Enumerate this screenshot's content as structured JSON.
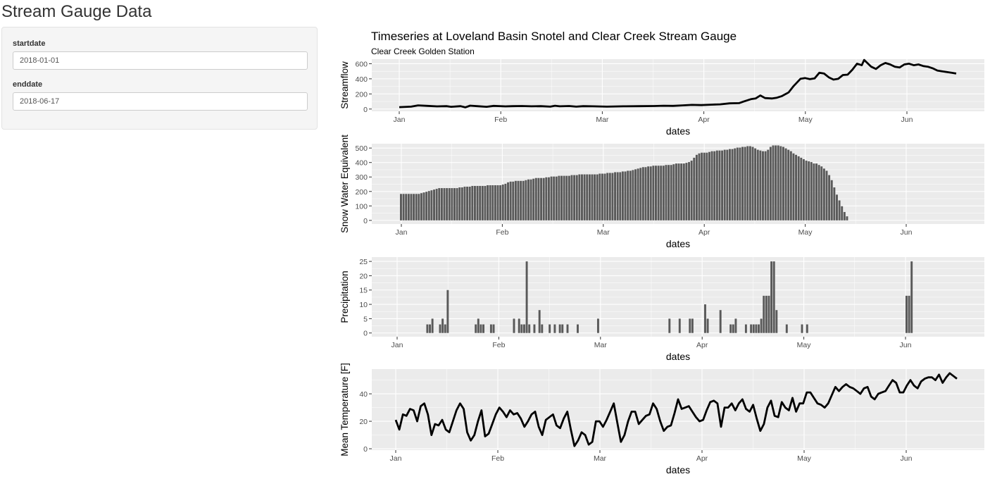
{
  "page": {
    "title": "Stream Gauge Data"
  },
  "sidebar": {
    "start": {
      "label": "startdate",
      "value": "2018-01-01"
    },
    "end": {
      "label": "enddate",
      "value": "2018-06-17"
    }
  },
  "colors": {
    "panel_bg": "#ebebeb",
    "grid_major": "#ffffff",
    "bar_fill": "#595959",
    "line": "#000000",
    "sidebar_bg": "#f5f5f5"
  },
  "chart_data": [
    {
      "id": "streamflow",
      "type": "line",
      "title": "Timeseries at Loveland Basin Snotel and Clear Creek Stream Gauge",
      "subtitle": "Clear Creek Golden Station",
      "xlabel": "dates",
      "ylabel": "Streamflow",
      "x_ticks": [
        "Jan",
        "Feb",
        "Mar",
        "Apr",
        "May",
        "Jun"
      ],
      "y_ticks": [
        0,
        200,
        400,
        600
      ],
      "ylim": [
        -30,
        660
      ],
      "x_start": 0,
      "x_end": 167,
      "grid": true,
      "points": [
        [
          0,
          25
        ],
        [
          5,
          32
        ],
        [
          8,
          48
        ],
        [
          12,
          42
        ],
        [
          16,
          35
        ],
        [
          20,
          38
        ],
        [
          22,
          30
        ],
        [
          26,
          38
        ],
        [
          28,
          22
        ],
        [
          30,
          45
        ],
        [
          33,
          38
        ],
        [
          37,
          30
        ],
        [
          40,
          42
        ],
        [
          45,
          35
        ],
        [
          48,
          38
        ],
        [
          52,
          40
        ],
        [
          56,
          36
        ],
        [
          60,
          38
        ],
        [
          64,
          32
        ],
        [
          66,
          44
        ],
        [
          68,
          36
        ],
        [
          72,
          40
        ],
        [
          75,
          32
        ],
        [
          78,
          38
        ],
        [
          82,
          36
        ],
        [
          88,
          32
        ],
        [
          95,
          36
        ],
        [
          102,
          38
        ],
        [
          108,
          40
        ],
        [
          112,
          44
        ],
        [
          116,
          42
        ],
        [
          120,
          48
        ],
        [
          124,
          55
        ],
        [
          128,
          52
        ],
        [
          132,
          58
        ],
        [
          136,
          62
        ],
        [
          140,
          75
        ],
        [
          144,
          78
        ],
        [
          146,
          100
        ],
        [
          149,
          130
        ],
        [
          151,
          140
        ],
        [
          153,
          180
        ],
        [
          155,
          145
        ],
        [
          158,
          140
        ],
        [
          160,
          150
        ],
        [
          162,
          170
        ],
        [
          165,
          220
        ],
        [
          167,
          300
        ],
        [
          170,
          400
        ],
        [
          172,
          410
        ],
        [
          174,
          395
        ],
        [
          176,
          405
        ],
        [
          178,
          480
        ],
        [
          180,
          470
        ],
        [
          182,
          420
        ],
        [
          184,
          390
        ],
        [
          186,
          400
        ],
        [
          188,
          450
        ],
        [
          190,
          455
        ],
        [
          192,
          520
        ],
        [
          194,
          600
        ],
        [
          196,
          580
        ],
        [
          197,
          650
        ],
        [
          200,
          560
        ],
        [
          202,
          530
        ],
        [
          204,
          580
        ],
        [
          206,
          610
        ],
        [
          208,
          590
        ],
        [
          210,
          560
        ],
        [
          212,
          550
        ],
        [
          214,
          590
        ],
        [
          216,
          600
        ],
        [
          218,
          580
        ],
        [
          220,
          590
        ],
        [
          222,
          570
        ],
        [
          224,
          560
        ],
        [
          226,
          540
        ],
        [
          228,
          510
        ],
        [
          230,
          500
        ],
        [
          232,
          490
        ],
        [
          234,
          480
        ],
        [
          236,
          470
        ]
      ]
    },
    {
      "id": "swe",
      "type": "bar",
      "xlabel": "dates",
      "ylabel": "Snow Water Equivalent",
      "x_ticks": [
        "Jan",
        "Feb",
        "Mar",
        "Apr",
        "May",
        "Jun"
      ],
      "y_ticks": [
        0,
        100,
        200,
        300,
        400,
        500
      ],
      "ylim": [
        -25,
        530
      ],
      "grid": true,
      "start_day": 0,
      "values": [
        183,
        183,
        183,
        183,
        183,
        183,
        183,
        183,
        188,
        193,
        198,
        203,
        208,
        213,
        218,
        223,
        223,
        223,
        223,
        223,
        223,
        223,
        223,
        228,
        228,
        233,
        233,
        233,
        238,
        238,
        238,
        238,
        238,
        238,
        243,
        243,
        243,
        243,
        243,
        243,
        248,
        253,
        263,
        268,
        268,
        273,
        273,
        273,
        273,
        278,
        283,
        283,
        288,
        293,
        293,
        293,
        293,
        298,
        298,
        303,
        303,
        303,
        308,
        308,
        308,
        308,
        308,
        313,
        313,
        313,
        318,
        318,
        318,
        318,
        318,
        318,
        318,
        318,
        323,
        323,
        323,
        328,
        328,
        328,
        333,
        333,
        333,
        338,
        338,
        343,
        343,
        348,
        353,
        358,
        363,
        368,
        368,
        373,
        373,
        378,
        378,
        378,
        378,
        378,
        383,
        383,
        383,
        388,
        393,
        393,
        393,
        393,
        398,
        403,
        413,
        433,
        453,
        463,
        468,
        468,
        468,
        473,
        478,
        478,
        483,
        483,
        483,
        488,
        488,
        493,
        493,
        498,
        503,
        503,
        508,
        508,
        513,
        513,
        508,
        498,
        488,
        483,
        478,
        478,
        488,
        508,
        518,
        518,
        518,
        513,
        508,
        498,
        488,
        478,
        463,
        453,
        443,
        433,
        423,
        413,
        408,
        403,
        393,
        393,
        383,
        373,
        358,
        343,
        313,
        278,
        228,
        178,
        138,
        98,
        58,
        28
      ]
    },
    {
      "id": "precip",
      "type": "bar",
      "xlabel": "dates",
      "ylabel": "Precipitation",
      "x_ticks": [
        "Jan",
        "Feb",
        "Mar",
        "Apr",
        "May",
        "Jun"
      ],
      "y_ticks": [
        0,
        5,
        10,
        15,
        20,
        25
      ],
      "ylim": [
        -1.3,
        26.5
      ],
      "grid": true,
      "start_day": 0,
      "values": [
        0,
        0,
        0,
        0,
        0,
        0,
        0,
        0,
        0,
        0,
        0,
        0,
        3,
        3,
        5,
        0,
        0,
        3,
        5,
        3,
        15,
        0,
        0,
        0,
        0,
        0,
        0,
        0,
        0,
        0,
        0,
        3,
        5,
        3,
        3,
        0,
        0,
        3,
        3,
        0,
        0,
        0,
        0,
        0,
        0,
        0,
        5,
        0,
        5,
        3,
        3,
        25,
        3,
        0,
        3,
        0,
        8,
        3,
        0,
        0,
        3,
        0,
        3,
        0,
        3,
        3,
        0,
        3,
        0,
        0,
        0,
        3,
        0,
        0,
        0,
        0,
        0,
        0,
        0,
        5,
        0,
        0,
        0,
        0,
        0,
        0,
        0,
        0,
        0,
        0,
        0,
        0,
        0,
        0,
        0,
        0,
        0,
        0,
        0,
        0,
        0,
        0,
        0,
        0,
        0,
        0,
        0,
        5,
        0,
        0,
        0,
        5,
        0,
        0,
        0,
        5,
        5,
        0,
        0,
        0,
        0,
        10,
        5,
        0,
        0,
        0,
        0,
        8,
        0,
        0,
        0,
        3,
        3,
        5,
        0,
        0,
        0,
        3,
        0,
        3,
        3,
        3,
        3,
        5,
        13,
        13,
        13,
        25,
        25,
        8,
        0,
        0,
        0,
        3,
        0,
        0,
        0,
        0,
        0,
        3,
        0,
        3,
        0,
        0,
        0,
        0,
        0,
        0,
        0,
        0,
        0,
        0,
        0,
        0,
        0,
        0,
        0,
        0,
        0,
        0,
        0,
        0,
        0,
        0,
        0,
        0,
        0,
        0,
        0,
        0,
        0,
        0,
        0,
        0,
        0,
        0,
        0,
        0,
        0,
        0,
        13,
        13,
        25
      ]
    },
    {
      "id": "temp",
      "type": "line",
      "xlabel": "dates",
      "ylabel": "Mean Temperature [F]",
      "x_ticks": [
        "Jan",
        "Feb",
        "Mar",
        "Apr",
        "May",
        "Jun"
      ],
      "y_ticks": [
        0,
        20,
        40
      ],
      "ylim": [
        -1,
        58
      ],
      "x_start": 0,
      "x_end": 167,
      "grid": true,
      "points": [
        [
          0,
          21
        ],
        [
          2,
          14
        ],
        [
          4,
          25
        ],
        [
          6,
          24
        ],
        [
          8,
          29
        ],
        [
          10,
          28
        ],
        [
          12,
          20
        ],
        [
          14,
          31
        ],
        [
          16,
          33
        ],
        [
          18,
          25
        ],
        [
          20,
          10
        ],
        [
          22,
          18
        ],
        [
          24,
          17
        ],
        [
          26,
          21
        ],
        [
          28,
          14
        ],
        [
          30,
          12
        ],
        [
          32,
          20
        ],
        [
          34,
          28
        ],
        [
          36,
          33
        ],
        [
          38,
          29
        ],
        [
          40,
          12
        ],
        [
          42,
          6
        ],
        [
          44,
          10
        ],
        [
          46,
          20
        ],
        [
          48,
          28
        ],
        [
          50,
          9
        ],
        [
          52,
          11
        ],
        [
          54,
          18
        ],
        [
          56,
          25
        ],
        [
          58,
          30
        ],
        [
          60,
          27
        ],
        [
          62,
          23
        ],
        [
          64,
          28
        ],
        [
          66,
          25
        ],
        [
          68,
          26
        ],
        [
          70,
          22
        ],
        [
          72,
          16
        ],
        [
          74,
          20
        ],
        [
          76,
          25
        ],
        [
          78,
          27
        ],
        [
          80,
          16
        ],
        [
          82,
          10
        ],
        [
          84,
          21
        ],
        [
          86,
          23
        ],
        [
          88,
          25
        ],
        [
          90,
          17
        ],
        [
          92,
          15
        ],
        [
          94,
          22
        ],
        [
          96,
          27
        ],
        [
          98,
          14
        ],
        [
          100,
          2
        ],
        [
          102,
          6
        ],
        [
          104,
          12
        ],
        [
          106,
          10
        ],
        [
          108,
          3
        ],
        [
          110,
          5
        ],
        [
          112,
          20
        ],
        [
          114,
          20
        ],
        [
          116,
          16
        ],
        [
          118,
          21
        ],
        [
          120,
          27
        ],
        [
          122,
          33
        ],
        [
          124,
          19
        ],
        [
          126,
          5
        ],
        [
          128,
          10
        ],
        [
          130,
          20
        ],
        [
          132,
          27
        ],
        [
          134,
          27
        ],
        [
          136,
          18
        ],
        [
          138,
          21
        ],
        [
          140,
          24
        ],
        [
          142,
          25
        ],
        [
          144,
          33
        ],
        [
          146,
          29
        ],
        [
          148,
          20
        ],
        [
          150,
          13
        ],
        [
          152,
          16
        ],
        [
          154,
          17
        ],
        [
          156,
          26
        ],
        [
          158,
          36
        ],
        [
          160,
          29
        ],
        [
          162,
          30
        ],
        [
          164,
          31
        ],
        [
          166,
          27
        ],
        [
          168,
          23
        ],
        [
          170,
          20
        ],
        [
          172,
          21
        ],
        [
          174,
          28
        ],
        [
          176,
          34
        ],
        [
          178,
          35
        ],
        [
          180,
          33
        ],
        [
          182,
          16
        ],
        [
          184,
          30
        ],
        [
          186,
          30
        ],
        [
          188,
          33
        ],
        [
          190,
          28
        ],
        [
          192,
          33
        ],
        [
          194,
          36
        ],
        [
          196,
          29
        ],
        [
          198,
          27
        ],
        [
          200,
          32
        ],
        [
          202,
          22
        ],
        [
          204,
          13
        ],
        [
          206,
          18
        ],
        [
          208,
          30
        ],
        [
          210,
          35
        ],
        [
          212,
          24
        ],
        [
          214,
          23
        ],
        [
          216,
          34
        ],
        [
          218,
          30
        ],
        [
          220,
          28
        ],
        [
          222,
          37
        ],
        [
          224,
          27
        ],
        [
          226,
          33
        ],
        [
          228,
          33
        ],
        [
          230,
          41
        ],
        [
          232,
          41
        ],
        [
          234,
          37
        ],
        [
          236,
          33
        ],
        [
          238,
          32
        ],
        [
          240,
          30
        ],
        [
          242,
          33
        ],
        [
          244,
          39
        ],
        [
          246,
          45
        ],
        [
          248,
          42
        ],
        [
          250,
          45
        ],
        [
          252,
          47
        ],
        [
          254,
          45
        ],
        [
          256,
          44
        ],
        [
          258,
          42
        ],
        [
          260,
          40
        ],
        [
          262,
          44
        ],
        [
          264,
          45
        ],
        [
          266,
          38
        ],
        [
          268,
          36
        ],
        [
          270,
          40
        ],
        [
          272,
          41
        ],
        [
          274,
          42
        ],
        [
          276,
          46
        ],
        [
          278,
          50
        ],
        [
          280,
          48
        ],
        [
          282,
          41
        ],
        [
          284,
          41
        ],
        [
          286,
          46
        ],
        [
          288,
          50
        ],
        [
          290,
          46
        ],
        [
          292,
          44
        ],
        [
          294,
          49
        ],
        [
          296,
          51
        ],
        [
          298,
          52
        ],
        [
          300,
          52
        ],
        [
          302,
          50
        ],
        [
          304,
          54
        ],
        [
          306,
          48
        ],
        [
          308,
          52
        ],
        [
          310,
          55
        ],
        [
          312,
          53
        ],
        [
          314,
          51
        ]
      ]
    }
  ]
}
